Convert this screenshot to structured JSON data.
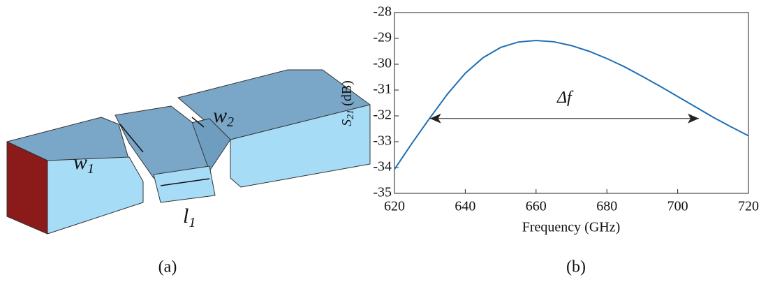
{
  "diagram": {
    "labels": [
      {
        "main": "w",
        "sub": "1"
      },
      {
        "main": "w",
        "sub": "2"
      },
      {
        "main": "l",
        "sub": "1"
      }
    ],
    "caption": "(a)"
  },
  "chart_data": {
    "type": "line",
    "caption": "(b)",
    "xlabel": "Frequency (GHz)",
    "ylabel": [
      "S",
      "21",
      " (dB)"
    ],
    "x": [
      620,
      625,
      630,
      635,
      640,
      645,
      650,
      655,
      660,
      665,
      670,
      675,
      680,
      685,
      690,
      695,
      700,
      705,
      710,
      715,
      720
    ],
    "values": [
      -34.07,
      -33.05,
      -32.08,
      -31.15,
      -30.35,
      -29.75,
      -29.35,
      -29.14,
      -29.08,
      -29.13,
      -29.28,
      -29.5,
      -29.78,
      -30.1,
      -30.47,
      -30.85,
      -31.25,
      -31.65,
      -32.05,
      -32.42,
      -32.77
    ],
    "color": "#1f6fb5",
    "xlim": [
      620,
      720
    ],
    "xticks": [
      620,
      640,
      660,
      680,
      700,
      720
    ],
    "ylim": [
      -35,
      -28
    ],
    "yticks": [
      -35,
      -34,
      -33,
      -32,
      -31,
      -30,
      -29,
      -28
    ],
    "annotation": {
      "text": "Δf",
      "x": [
        630,
        706
      ],
      "y": -32.1
    }
  }
}
